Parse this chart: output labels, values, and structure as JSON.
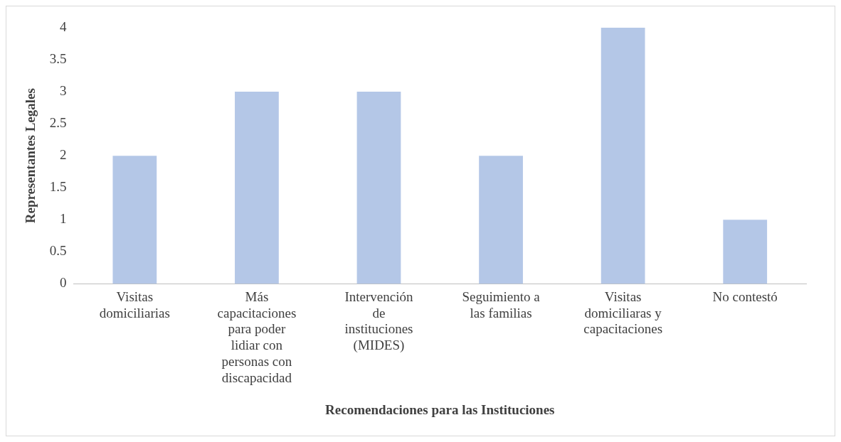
{
  "chart_data": {
    "type": "bar",
    "xlabel": "Recomendaciones para las Instituciones",
    "ylabel": "Representantes Legales",
    "categories": [
      "Visitas domiciliarias",
      "Más capacitaciones para poder lidiar con personas con discapacidad",
      "Intervención de instituciones (MIDES)",
      "Seguimiento a las familias",
      "Visitas domiciliaras y capacitaciones",
      "No contestó"
    ],
    "values": [
      2,
      3,
      3,
      2,
      4,
      1
    ],
    "color": "#b4c7e7",
    "ylim": [
      0,
      4
    ],
    "yticks": [
      0,
      0.5,
      1,
      1.5,
      2,
      2.5,
      3,
      3.5,
      4
    ],
    "grid": false,
    "legend": false
  }
}
